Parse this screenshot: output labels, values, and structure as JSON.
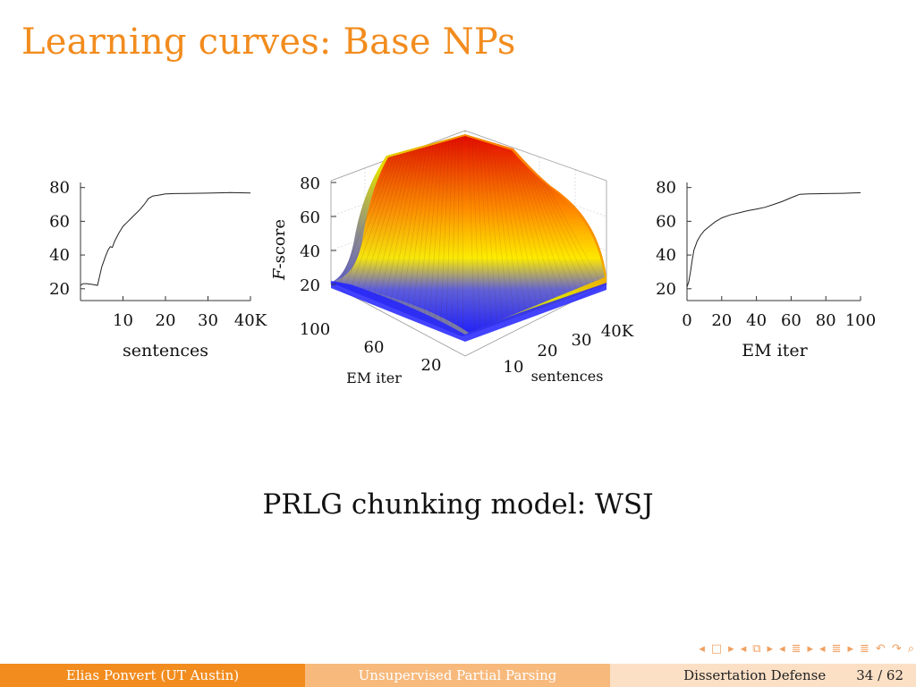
{
  "slide": {
    "title": "Learning curves: Base NPs",
    "caption": "PRLG chunking model: WSJ",
    "accent_color": "#f28c1e"
  },
  "chart_data": [
    {
      "type": "line",
      "xlabel": "sentences",
      "ylabel": "",
      "x_ticks": [
        "10",
        "20",
        "30",
        "40K"
      ],
      "y_ticks": [
        "20",
        "40",
        "60",
        "80"
      ],
      "xlim": [
        0,
        40
      ],
      "ylim": [
        13,
        83
      ],
      "series": [
        {
          "x": [
            0,
            0.6,
            1.5,
            3,
            4,
            5,
            6,
            6.5,
            7,
            7.5,
            8,
            9,
            10,
            11,
            12,
            13,
            14,
            15,
            16,
            17,
            18,
            19,
            20,
            21,
            22,
            25,
            30,
            35,
            40
          ],
          "y": [
            22,
            23,
            23,
            22.5,
            22,
            33,
            40,
            43,
            45,
            44.5,
            48,
            53,
            57,
            59.5,
            62,
            64.5,
            67,
            70,
            73.5,
            75,
            75.3,
            75.8,
            76.2,
            76.3,
            76.4,
            76.5,
            76.7,
            77,
            76.8
          ]
        }
      ]
    },
    {
      "type": "surface",
      "xlabel": "sentences",
      "ylabel": "EM iter",
      "zlabel": "F-score",
      "x_ticks": [
        "10",
        "20",
        "30",
        "40K"
      ],
      "y_ticks": [
        "20",
        "60",
        "100"
      ],
      "z_ticks": [
        "20",
        "40",
        "60",
        "80"
      ],
      "xlim": [
        0,
        40
      ],
      "ylim": [
        0,
        100
      ],
      "zlim": [
        13,
        88
      ],
      "colors": [
        "#1a1aff",
        "#ffff00",
        "#ff0000"
      ]
    },
    {
      "type": "line",
      "xlabel": "EM iter",
      "ylabel": "",
      "x_ticks": [
        "0",
        "20",
        "40",
        "60",
        "80",
        "100"
      ],
      "y_ticks": [
        "20",
        "40",
        "60",
        "80"
      ],
      "xlim": [
        0,
        100
      ],
      "ylim": [
        13,
        83
      ],
      "series": [
        {
          "x": [
            0,
            1,
            2,
            3,
            4,
            6,
            8,
            10,
            13,
            16,
            20,
            25,
            30,
            35,
            40,
            45,
            50,
            55,
            60,
            65,
            70,
            75,
            80,
            85,
            90,
            95,
            100
          ],
          "y": [
            21,
            24,
            30,
            37,
            43,
            48.5,
            52,
            54.5,
            57,
            59.5,
            62,
            63.8,
            65,
            66.3,
            67.2,
            68.3,
            70,
            71.8,
            74,
            76,
            76.2,
            76.3,
            76.4,
            76.5,
            76.6,
            76.8,
            76.9
          ]
        }
      ]
    }
  ],
  "nav": {
    "icons": [
      "◂",
      "□",
      "▸",
      "◂",
      "⧉",
      "▸",
      "◂",
      "≣",
      "▸",
      "◂",
      "≣",
      "▸",
      "≣",
      "↶",
      "↷",
      "⌕"
    ]
  },
  "footer": {
    "author": "Elias Ponvert  (UT Austin)",
    "title": "Unsupervised Partial Parsing",
    "event": "Dissertation Defense",
    "page": "34 / 62"
  }
}
